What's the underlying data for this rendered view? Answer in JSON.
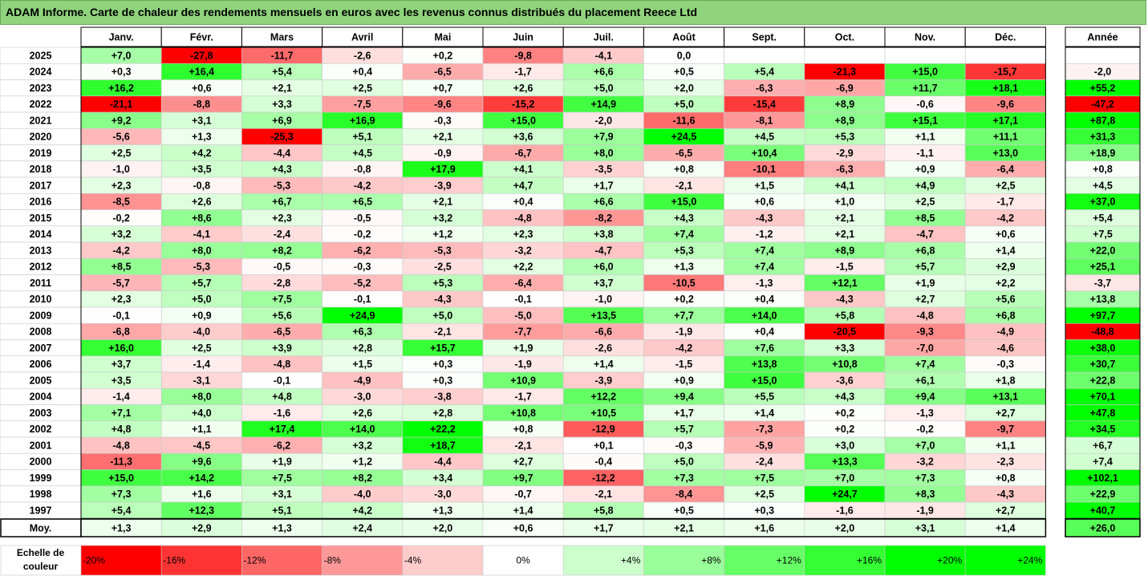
{
  "title": "ADAM Informe. Carte de chaleur des rendements mensuels en euros avec les revenus connus distribués du placement Reece Ltd",
  "chart_data": {
    "type": "heatmap",
    "title": "ADAM Informe. Carte de chaleur des rendements mensuels en euros avec les revenus connus distribués du placement Reece Ltd",
    "months": [
      "Janv.",
      "Févr.",
      "Mars",
      "Avril",
      "Mai",
      "Juin",
      "Juil.",
      "Août",
      "Sept.",
      "Oct.",
      "Nov.",
      "Déc."
    ],
    "year_column_label": "Année",
    "years": [
      "2025",
      "2024",
      "2023",
      "2022",
      "2021",
      "2020",
      "2019",
      "2018",
      "2017",
      "2016",
      "2015",
      "2014",
      "2013",
      "2012",
      "2011",
      "2010",
      "2009",
      "2008",
      "2007",
      "2006",
      "2005",
      "2004",
      "2003",
      "2002",
      "2001",
      "2000",
      "1999",
      "1998",
      "1997"
    ],
    "values": [
      [
        "+7,0",
        "-27,8",
        "-11,7",
        "-2,6",
        "+0,2",
        "-9,8",
        "-4,1",
        "0,0",
        "",
        "",
        "",
        ""
      ],
      [
        "+0,3",
        "+16,4",
        "+5,4",
        "+0,4",
        "-6,5",
        "-1,7",
        "+6,6",
        "+0,5",
        "+5,4",
        "-21,3",
        "+15,0",
        "-15,7"
      ],
      [
        "+16,2",
        "+0,6",
        "+2,1",
        "+2,5",
        "+0,7",
        "+2,6",
        "+5,0",
        "+2,0",
        "-6,3",
        "-6,9",
        "+11,7",
        "+18,1"
      ],
      [
        "-21,1",
        "-8,8",
        "+3,3",
        "-7,5",
        "-9,6",
        "-15,2",
        "+14,9",
        "+5,0",
        "-15,4",
        "+8,9",
        "-0,6",
        "-9,6"
      ],
      [
        "+9,2",
        "+3,1",
        "+6,9",
        "+16,9",
        "-0,3",
        "+15,0",
        "-2,0",
        "-11,6",
        "-8,1",
        "+8,9",
        "+15,1",
        "+17,1"
      ],
      [
        "-5,6",
        "+1,3",
        "-25,3",
        "+5,1",
        "+2,1",
        "+3,6",
        "+7,9",
        "+24,5",
        "+4,5",
        "+5,3",
        "+1,1",
        "+11,1"
      ],
      [
        "+2,5",
        "+4,2",
        "-4,4",
        "+4,5",
        "-0,9",
        "-6,7",
        "+8,0",
        "-6,5",
        "+10,4",
        "-2,9",
        "-1,1",
        "+13,0"
      ],
      [
        "-1,0",
        "+3,5",
        "+4,3",
        "-0,8",
        "+17,9",
        "+4,1",
        "-3,5",
        "+0,8",
        "-10,1",
        "-6,3",
        "+0,9",
        "-6,4"
      ],
      [
        "+2,3",
        "-0,8",
        "-5,3",
        "-4,2",
        "-3,9",
        "+4,7",
        "+1,7",
        "-2,1",
        "+1,5",
        "+4,1",
        "+4,9",
        "+2,5"
      ],
      [
        "-8,5",
        "+2,6",
        "+6,7",
        "+6,5",
        "+2,1",
        "+0,4",
        "+6,6",
        "+15,0",
        "+0,6",
        "+1,0",
        "+2,5",
        "-1,7"
      ],
      [
        "-0,2",
        "+8,6",
        "+2,3",
        "-0,5",
        "+3,2",
        "-4,8",
        "-8,2",
        "+4,3",
        "-4,3",
        "+2,1",
        "+8,5",
        "-4,2"
      ],
      [
        "+3,2",
        "-4,1",
        "-2,4",
        "-0,2",
        "+1,2",
        "+2,3",
        "+3,8",
        "+7,4",
        "-1,2",
        "+2,1",
        "-4,7",
        "+0,6"
      ],
      [
        "-4,2",
        "+8,0",
        "+8,2",
        "-6,2",
        "-5,3",
        "-3,2",
        "-4,7",
        "+5,3",
        "+7,4",
        "+8,9",
        "+6,8",
        "+1,4"
      ],
      [
        "+8,5",
        "-5,3",
        "-0,5",
        "-0,3",
        "-2,5",
        "+2,2",
        "+6,0",
        "+1,3",
        "+7,4",
        "-1,5",
        "+5,7",
        "+2,9"
      ],
      [
        "-5,7",
        "+5,7",
        "-2,8",
        "-5,2",
        "+5,3",
        "-6,4",
        "+3,7",
        "-10,5",
        "-1,3",
        "+12,1",
        "+1,9",
        "+2,2"
      ],
      [
        "+2,3",
        "+5,0",
        "+7,5",
        "-0,1",
        "-4,3",
        "-0,1",
        "-1,0",
        "+0,2",
        "+0,4",
        "-4,3",
        "+2,7",
        "+5,6"
      ],
      [
        "-0,1",
        "+0,9",
        "+5,6",
        "+24,9",
        "+5,0",
        "-5,0",
        "+13,5",
        "+7,7",
        "+14,0",
        "+5,8",
        "-4,8",
        "+6,8"
      ],
      [
        "-6,8",
        "-4,0",
        "-6,5",
        "+6,3",
        "-2,1",
        "-7,7",
        "-6,6",
        "-1,9",
        "+0,4",
        "-20,5",
        "-9,3",
        "-4,9"
      ],
      [
        "+16,0",
        "+2,5",
        "+3,9",
        "+2,8",
        "+15,7",
        "+1,9",
        "-2,6",
        "-4,2",
        "+7,6",
        "+3,3",
        "-7,0",
        "-4,6"
      ],
      [
        "+3,7",
        "-1,4",
        "-4,8",
        "+1,5",
        "+0,3",
        "-1,9",
        "+1,4",
        "-1,5",
        "+13,8",
        "+10,8",
        "+7,4",
        "-0,3"
      ],
      [
        "+3,5",
        "-3,1",
        "-0,1",
        "-4,9",
        "+0,3",
        "+10,9",
        "-3,9",
        "+0,9",
        "+15,0",
        "-3,6",
        "+6,1",
        "+1,8"
      ],
      [
        "-1,4",
        "+8,0",
        "+4,8",
        "-3,0",
        "-3,8",
        "-1,7",
        "+12,2",
        "+9,4",
        "+5,5",
        "+4,3",
        "+9,4",
        "+13,1"
      ],
      [
        "+7,1",
        "+4,0",
        "-1,6",
        "+2,6",
        "+2,8",
        "+10,8",
        "+10,5",
        "+1,7",
        "+1,4",
        "+0,2",
        "-1,3",
        "+2,7"
      ],
      [
        "+4,8",
        "+1,1",
        "+17,4",
        "+14,0",
        "+22,2",
        "+0,8",
        "-12,9",
        "+5,7",
        "-7,3",
        "+0,2",
        "-0,2",
        "-9,7"
      ],
      [
        "-4,8",
        "-4,5",
        "-6,2",
        "+3,2",
        "+18,7",
        "-2,1",
        "+0,1",
        "-0,3",
        "-5,9",
        "+3,0",
        "+7,0",
        "+1,1"
      ],
      [
        "-11,3",
        "+9,6",
        "+1,9",
        "+1,2",
        "-4,4",
        "+2,7",
        "-0,4",
        "+5,0",
        "-2,4",
        "+13,3",
        "-3,2",
        "-2,3"
      ],
      [
        "+15,0",
        "+14,2",
        "+7,5",
        "+8,2",
        "+3,4",
        "+9,7",
        "-12,2",
        "+7,3",
        "+7,5",
        "+7,0",
        "+7,3",
        "+0,8"
      ],
      [
        "+7,3",
        "+1,6",
        "+3,1",
        "-4,0",
        "-3,0",
        "-0,7",
        "-2,1",
        "-8,4",
        "+2,5",
        "+24,7",
        "+8,3",
        "-4,3"
      ],
      [
        "+5,4",
        "+12,3",
        "+5,1",
        "+4,2",
        "+1,3",
        "+1,4",
        "+5,8",
        "+0,5",
        "+0,3",
        "-1,6",
        "-1,9",
        "+2,7"
      ]
    ],
    "annual": [
      "",
      "-2,0",
      "+55,2",
      "-47,2",
      "+87,8",
      "+31,3",
      "+18,9",
      "+0,8",
      "+4,5",
      "+37,0",
      "+5,4",
      "+7,5",
      "+22,0",
      "+25,1",
      "-3,7",
      "+13,8",
      "+97,7",
      "-48,8",
      "+38,0",
      "+30,7",
      "+22,8",
      "+70,1",
      "+47,8",
      "+34,5",
      "+6,7",
      "+7,4",
      "+102,1",
      "+22,9",
      "+40,7"
    ],
    "average_label": "Moy.",
    "average": [
      "+1,3",
      "+2,9",
      "+1,3",
      "+2,4",
      "+2,0",
      "+0,6",
      "+1,7",
      "+2,1",
      "+1,6",
      "+2,0",
      "+3,1",
      "+1,4"
    ],
    "average_annual": "+26,0",
    "scale_label": [
      "Echelle de",
      "couleur"
    ],
    "scale": [
      {
        "label": "-20%",
        "value": -20
      },
      {
        "label": "-16%",
        "value": -16
      },
      {
        "label": "-12%",
        "value": -12
      },
      {
        "label": "-8%",
        "value": -8
      },
      {
        "label": "-4%",
        "value": -4
      },
      {
        "label": "0%",
        "value": 0
      },
      {
        "label": "+4%",
        "value": 4
      },
      {
        "label": "+8%",
        "value": 8
      },
      {
        "label": "+12%",
        "value": 12
      },
      {
        "label": "+16%",
        "value": 16
      },
      {
        "label": "+20%",
        "value": 20
      },
      {
        "label": "+24%",
        "value": 24
      }
    ],
    "colors": {
      "negative_max": "#ff0000",
      "neutral": "#ffffff",
      "positive_max": "#00ff00",
      "title_background": "#8fd37c"
    }
  }
}
